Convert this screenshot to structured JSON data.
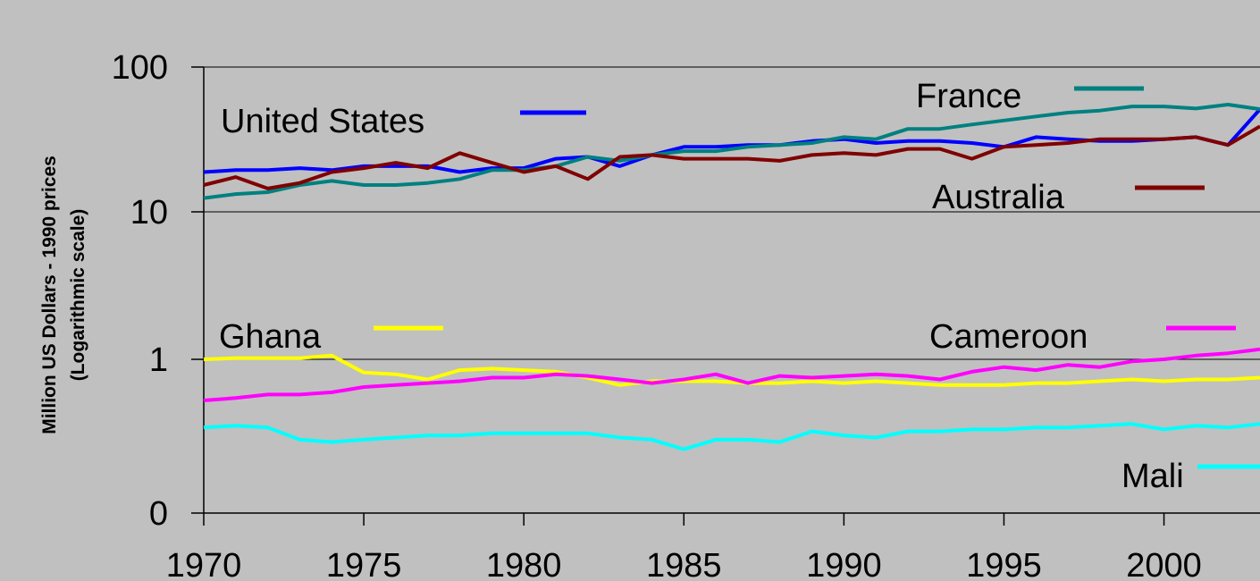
{
  "chart_data": {
    "type": "line",
    "ylabel": "Million US Dollars - 1990 prices",
    "ylabel2": "(Logarithmic scale)",
    "y_scale": "log",
    "y_ticks": [
      "0",
      "1",
      "10",
      "100"
    ],
    "xlim": [
      1970,
      2003
    ],
    "x_tick_labels": [
      "1970",
      "1975",
      "1980",
      "1985",
      "1990",
      "1995",
      "2000"
    ],
    "grid": "horizontal",
    "x": [
      1970,
      1971,
      1972,
      1973,
      1974,
      1975,
      1976,
      1977,
      1978,
      1979,
      1980,
      1981,
      1982,
      1983,
      1984,
      1985,
      1986,
      1987,
      1988,
      1989,
      1990,
      1991,
      1992,
      1993,
      1994,
      1995,
      1996,
      1997,
      1998,
      1999,
      2000,
      2001,
      2002,
      2003
    ],
    "series": [
      {
        "name": "United States",
        "color": "#0000ff",
        "values": [
          18.6,
          19.2,
          19.2,
          19.8,
          19.2,
          20.4,
          20.4,
          20.4,
          18.6,
          19.8,
          19.8,
          22.9,
          23.6,
          20.4,
          24.3,
          27.6,
          27.6,
          28.4,
          28.4,
          30.2,
          31.1,
          29.3,
          30.2,
          30.2,
          29.3,
          27.6,
          32.1,
          31.1,
          30.2,
          30.2,
          31.1,
          32.1,
          28.4,
          49.6
        ]
      },
      {
        "name": "France",
        "color": "#008080",
        "values": [
          12.4,
          13.2,
          13.6,
          15.2,
          16.2,
          15.2,
          15.2,
          15.7,
          16.7,
          19.2,
          19.2,
          20.4,
          23.6,
          22.2,
          24.3,
          25.8,
          25.8,
          27.6,
          28.4,
          29.3,
          32.1,
          31.1,
          36.5,
          36.5,
          39.1,
          41.6,
          44.3,
          47.1,
          48.6,
          51.8,
          51.8,
          50.2,
          53.4,
          49.6
        ]
      },
      {
        "name": "Australia",
        "color": "#800000",
        "values": [
          15.2,
          17.2,
          14.4,
          15.7,
          18.6,
          19.8,
          21.5,
          19.8,
          25.0,
          21.5,
          18.6,
          20.4,
          16.7,
          23.6,
          24.3,
          22.9,
          22.9,
          22.9,
          22.2,
          24.3,
          25.0,
          24.3,
          26.7,
          26.7,
          22.9,
          27.6,
          28.4,
          29.3,
          31.1,
          31.1,
          31.1,
          32.1,
          28.4,
          38.0
        ]
      },
      {
        "name": "Ghana",
        "color": "#ffff00",
        "values": [
          1.0,
          1.02,
          1.02,
          1.02,
          1.06,
          0.82,
          0.8,
          0.74,
          0.85,
          0.87,
          0.85,
          0.83,
          0.76,
          0.68,
          0.72,
          0.72,
          0.72,
          0.7,
          0.7,
          0.72,
          0.7,
          0.72,
          0.7,
          0.68,
          0.68,
          0.68,
          0.7,
          0.7,
          0.72,
          0.74,
          0.72,
          0.74,
          0.74,
          0.76
        ]
      },
      {
        "name": "Cameroon",
        "color": "#ff00ff",
        "values": [
          0.54,
          0.56,
          0.59,
          0.59,
          0.61,
          0.66,
          0.68,
          0.7,
          0.72,
          0.76,
          0.76,
          0.8,
          0.78,
          0.74,
          0.7,
          0.74,
          0.8,
          0.7,
          0.78,
          0.76,
          0.78,
          0.8,
          0.78,
          0.74,
          0.83,
          0.89,
          0.85,
          0.92,
          0.89,
          0.97,
          1.0,
          1.06,
          1.1,
          1.17
        ]
      },
      {
        "name": "Mali",
        "color": "#00ffff",
        "values": [
          0.36,
          0.37,
          0.36,
          0.3,
          0.29,
          0.3,
          0.31,
          0.32,
          0.32,
          0.33,
          0.33,
          0.33,
          0.33,
          0.31,
          0.3,
          0.26,
          0.3,
          0.3,
          0.29,
          0.34,
          0.32,
          0.31,
          0.34,
          0.34,
          0.35,
          0.35,
          0.36,
          0.36,
          0.37,
          0.38,
          0.35,
          0.37,
          0.36,
          0.38
        ]
      }
    ],
    "legend_placement": "inline"
  }
}
